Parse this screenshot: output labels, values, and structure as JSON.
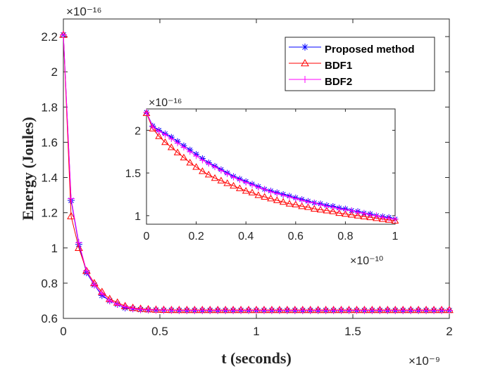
{
  "chart_data": {
    "type": "line",
    "xlabel": "t (seconds)",
    "ylabel": "Energy (Joules)",
    "x_exponent": "×10⁻⁹",
    "y_exponent": "×10⁻¹⁶",
    "xlim": [
      0,
      2
    ],
    "ylim": [
      0.6,
      2.3
    ],
    "xticks": [
      0,
      0.5,
      1,
      1.5,
      2
    ],
    "xtick_labels": [
      "0",
      "0.5",
      "1",
      "1.5",
      "2"
    ],
    "yticks": [
      0.6,
      0.8,
      1,
      1.2,
      1.4,
      1.6,
      1.8,
      2,
      2.2
    ],
    "ytick_labels": [
      "0.6",
      "0.8",
      "1",
      "1.2",
      "1.4",
      "1.6",
      "1.8",
      "2",
      "2.2"
    ],
    "legend_position": "top-right",
    "colors": {
      "proposed": "#0000ff",
      "bdf1": "#ff0000",
      "bdf2": "#ff00ff"
    },
    "series": [
      {
        "name": "Proposed method",
        "marker": "asterisk",
        "x": [
          0,
          0.04,
          0.08,
          0.12,
          0.16,
          0.2,
          0.24,
          0.28,
          0.32,
          0.36,
          0.4,
          0.44,
          0.48,
          0.52,
          0.56,
          0.6,
          0.64,
          0.68,
          0.72,
          0.76,
          0.8,
          0.84,
          0.88,
          0.92,
          0.96,
          1,
          1.04,
          1.08,
          1.12,
          1.16,
          1.2,
          1.24,
          1.28,
          1.32,
          1.36,
          1.4,
          1.44,
          1.48,
          1.52,
          1.56,
          1.6,
          1.64,
          1.68,
          1.72,
          1.76,
          1.8,
          1.84,
          1.88,
          1.92,
          1.96,
          2
        ],
        "y": [
          2.21,
          1.27,
          1.02,
          0.86,
          0.79,
          0.73,
          0.7,
          0.68,
          0.66,
          0.655,
          0.65,
          0.648,
          0.647,
          0.646,
          0.646,
          0.645,
          0.645,
          0.645,
          0.645,
          0.645,
          0.645,
          0.645,
          0.645,
          0.645,
          0.645,
          0.645,
          0.645,
          0.645,
          0.645,
          0.645,
          0.645,
          0.645,
          0.645,
          0.645,
          0.645,
          0.645,
          0.645,
          0.645,
          0.645,
          0.645,
          0.645,
          0.645,
          0.645,
          0.645,
          0.645,
          0.645,
          0.645,
          0.645,
          0.645,
          0.645,
          0.645
        ]
      },
      {
        "name": "BDF1",
        "marker": "triangle",
        "x": [
          0,
          0.04,
          0.08,
          0.12,
          0.16,
          0.2,
          0.24,
          0.28,
          0.32,
          0.36,
          0.4,
          0.44,
          0.48,
          0.52,
          0.56,
          0.6,
          0.64,
          0.68,
          0.72,
          0.76,
          0.8,
          0.84,
          0.88,
          0.92,
          0.96,
          1,
          1.04,
          1.08,
          1.12,
          1.16,
          1.2,
          1.24,
          1.28,
          1.32,
          1.36,
          1.4,
          1.44,
          1.48,
          1.52,
          1.56,
          1.6,
          1.64,
          1.68,
          1.72,
          1.76,
          1.8,
          1.84,
          1.88,
          1.92,
          1.96,
          2
        ],
        "y": [
          2.21,
          1.18,
          1.0,
          0.87,
          0.8,
          0.75,
          0.71,
          0.69,
          0.67,
          0.66,
          0.655,
          0.652,
          0.65,
          0.649,
          0.648,
          0.648,
          0.648,
          0.648,
          0.648,
          0.648,
          0.648,
          0.648,
          0.648,
          0.648,
          0.648,
          0.648,
          0.648,
          0.648,
          0.648,
          0.648,
          0.648,
          0.648,
          0.648,
          0.648,
          0.648,
          0.648,
          0.648,
          0.648,
          0.648,
          0.648,
          0.648,
          0.648,
          0.648,
          0.648,
          0.648,
          0.648,
          0.648,
          0.648,
          0.648,
          0.648,
          0.648
        ]
      },
      {
        "name": "BDF2",
        "marker": "plus",
        "x": [
          0,
          0.04,
          0.08,
          0.12,
          0.16,
          0.2,
          0.24,
          0.28,
          0.32,
          0.36,
          0.4,
          0.44,
          0.48,
          0.52,
          0.56,
          0.6,
          0.64,
          0.68,
          0.72,
          0.76,
          0.8,
          0.84,
          0.88,
          0.92,
          0.96,
          1,
          1.04,
          1.08,
          1.12,
          1.16,
          1.2,
          1.24,
          1.28,
          1.32,
          1.36,
          1.4,
          1.44,
          1.48,
          1.52,
          1.56,
          1.6,
          1.64,
          1.68,
          1.72,
          1.76,
          1.8,
          1.84,
          1.88,
          1.92,
          1.96,
          2
        ],
        "y": [
          2.21,
          1.28,
          1.03,
          0.87,
          0.79,
          0.74,
          0.7,
          0.68,
          0.665,
          0.656,
          0.651,
          0.649,
          0.648,
          0.647,
          0.646,
          0.646,
          0.646,
          0.646,
          0.646,
          0.646,
          0.646,
          0.646,
          0.646,
          0.646,
          0.646,
          0.646,
          0.646,
          0.646,
          0.646,
          0.646,
          0.646,
          0.646,
          0.646,
          0.646,
          0.646,
          0.646,
          0.646,
          0.646,
          0.646,
          0.646,
          0.646,
          0.646,
          0.646,
          0.646,
          0.646,
          0.646,
          0.646,
          0.646,
          0.646,
          0.646,
          0.646
        ]
      }
    ],
    "inset": {
      "type": "line",
      "xlim": [
        0,
        1
      ],
      "ylim": [
        0.9,
        2.25
      ],
      "x_exponent": "×10⁻¹⁰",
      "y_exponent": "×10⁻¹⁶",
      "xticks": [
        0,
        0.2,
        0.4,
        0.6,
        0.8,
        1
      ],
      "xtick_labels": [
        "0",
        "0.2",
        "0.4",
        "0.6",
        "0.8",
        "1"
      ],
      "yticks": [
        1,
        1.5,
        2
      ],
      "ytick_labels": [
        "1",
        "1.5",
        "2"
      ],
      "series": [
        {
          "name": "Proposed method",
          "marker": "asterisk",
          "x": [
            0,
            0.025,
            0.05,
            0.075,
            0.1,
            0.125,
            0.15,
            0.175,
            0.2,
            0.225,
            0.25,
            0.275,
            0.3,
            0.325,
            0.35,
            0.375,
            0.4,
            0.425,
            0.45,
            0.475,
            0.5,
            0.525,
            0.55,
            0.575,
            0.6,
            0.625,
            0.65,
            0.675,
            0.7,
            0.725,
            0.75,
            0.775,
            0.8,
            0.825,
            0.85,
            0.875,
            0.9,
            0.925,
            0.95,
            0.975,
            1
          ],
          "y": [
            2.21,
            2.05,
            2.0,
            1.96,
            1.92,
            1.87,
            1.82,
            1.77,
            1.72,
            1.67,
            1.62,
            1.58,
            1.54,
            1.5,
            1.46,
            1.43,
            1.4,
            1.37,
            1.34,
            1.31,
            1.29,
            1.27,
            1.25,
            1.23,
            1.21,
            1.19,
            1.17,
            1.15,
            1.14,
            1.12,
            1.11,
            1.09,
            1.08,
            1.06,
            1.05,
            1.03,
            1.02,
            1.0,
            0.99,
            0.98,
            0.96
          ]
        },
        {
          "name": "BDF1",
          "marker": "triangle",
          "x": [
            0,
            0.025,
            0.05,
            0.075,
            0.1,
            0.125,
            0.15,
            0.175,
            0.2,
            0.225,
            0.25,
            0.275,
            0.3,
            0.325,
            0.35,
            0.375,
            0.4,
            0.425,
            0.45,
            0.475,
            0.5,
            0.525,
            0.55,
            0.575,
            0.6,
            0.625,
            0.65,
            0.675,
            0.7,
            0.725,
            0.75,
            0.775,
            0.8,
            0.825,
            0.85,
            0.875,
            0.9,
            0.925,
            0.95,
            0.975,
            1
          ],
          "y": [
            2.2,
            2.02,
            1.93,
            1.86,
            1.8,
            1.74,
            1.68,
            1.62,
            1.57,
            1.52,
            1.48,
            1.44,
            1.41,
            1.38,
            1.35,
            1.32,
            1.29,
            1.27,
            1.24,
            1.22,
            1.2,
            1.18,
            1.16,
            1.14,
            1.13,
            1.11,
            1.1,
            1.08,
            1.07,
            1.06,
            1.05,
            1.03,
            1.02,
            1.01,
            1.0,
            0.99,
            0.98,
            0.97,
            0.96,
            0.95,
            0.94
          ]
        },
        {
          "name": "BDF2",
          "marker": "plus",
          "x": [
            0,
            0.025,
            0.05,
            0.075,
            0.1,
            0.125,
            0.15,
            0.175,
            0.2,
            0.225,
            0.25,
            0.275,
            0.3,
            0.325,
            0.35,
            0.375,
            0.4,
            0.425,
            0.45,
            0.475,
            0.5,
            0.525,
            0.55,
            0.575,
            0.6,
            0.625,
            0.65,
            0.675,
            0.7,
            0.725,
            0.75,
            0.775,
            0.8,
            0.825,
            0.85,
            0.875,
            0.9,
            0.925,
            0.95,
            0.975,
            1
          ],
          "y": [
            2.21,
            2.04,
            1.99,
            1.95,
            1.9,
            1.85,
            1.8,
            1.75,
            1.7,
            1.65,
            1.61,
            1.57,
            1.53,
            1.49,
            1.45,
            1.42,
            1.39,
            1.36,
            1.33,
            1.31,
            1.28,
            1.26,
            1.24,
            1.22,
            1.2,
            1.18,
            1.16,
            1.15,
            1.13,
            1.11,
            1.1,
            1.08,
            1.07,
            1.06,
            1.04,
            1.03,
            1.01,
            1.0,
            0.98,
            0.97,
            0.96
          ]
        }
      ]
    }
  }
}
